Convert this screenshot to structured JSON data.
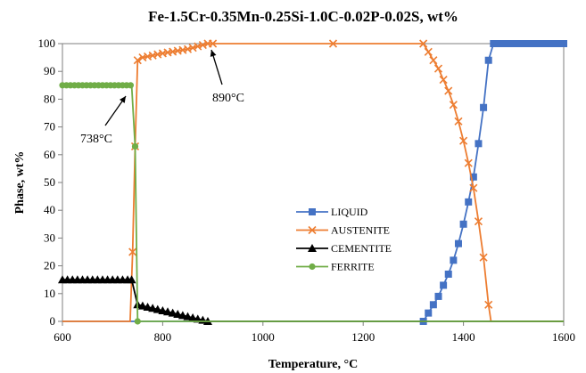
{
  "chart_data": {
    "type": "line",
    "title": "Fe-1.5Cr-0.35Mn-0.25Si-1.0C-0.02P-0.02S, wt%",
    "xlabel": "Temperature, °C",
    "ylabel": "Phase, wt%",
    "xlim": [
      600,
      1600
    ],
    "ylim": [
      0,
      100
    ],
    "xticks": [
      600,
      800,
      1000,
      1200,
      1400,
      1600
    ],
    "yticks": [
      0,
      10,
      20,
      30,
      40,
      50,
      60,
      70,
      80,
      90,
      100
    ],
    "grid": false,
    "legend_position": "center-right",
    "series": [
      {
        "name": "LIQUID",
        "color": "#4472C4",
        "marker": "square",
        "points": [
          [
            600,
            0
          ],
          [
            1320,
            0
          ],
          [
            1330,
            3
          ],
          [
            1340,
            6
          ],
          [
            1350,
            9
          ],
          [
            1360,
            13
          ],
          [
            1370,
            17
          ],
          [
            1380,
            22
          ],
          [
            1390,
            28
          ],
          [
            1400,
            35
          ],
          [
            1410,
            43
          ],
          [
            1420,
            52
          ],
          [
            1430,
            64
          ],
          [
            1440,
            77
          ],
          [
            1450,
            94
          ],
          [
            1460,
            100
          ],
          [
            1600,
            100
          ]
        ],
        "marker_x": [
          1320,
          1330,
          1340,
          1350,
          1360,
          1370,
          1380,
          1390,
          1400,
          1410,
          1420,
          1430,
          1440,
          1450,
          1460,
          1470,
          1480,
          1490,
          1500,
          1510,
          1520,
          1530,
          1540,
          1550,
          1560,
          1570,
          1580,
          1590,
          1600
        ]
      },
      {
        "name": "AUSTENITE",
        "color": "#ED7D31",
        "marker": "x",
        "points": [
          [
            600,
            0
          ],
          [
            735,
            0
          ],
          [
            740,
            25
          ],
          [
            745,
            63
          ],
          [
            750,
            94
          ],
          [
            760,
            95
          ],
          [
            800,
            96.5
          ],
          [
            850,
            98
          ],
          [
            890,
            100
          ],
          [
            1320,
            100
          ],
          [
            1330,
            97
          ],
          [
            1340,
            94
          ],
          [
            1350,
            91
          ],
          [
            1360,
            87
          ],
          [
            1370,
            83
          ],
          [
            1380,
            78
          ],
          [
            1390,
            72
          ],
          [
            1400,
            65
          ],
          [
            1410,
            57
          ],
          [
            1420,
            48
          ],
          [
            1430,
            36
          ],
          [
            1440,
            23
          ],
          [
            1450,
            6
          ],
          [
            1455,
            0
          ],
          [
            1600,
            0
          ]
        ],
        "marker_x": [
          740,
          745,
          750,
          760,
          770,
          780,
          790,
          800,
          810,
          820,
          830,
          840,
          850,
          860,
          870,
          880,
          890,
          900,
          1140,
          1320,
          1330,
          1340,
          1350,
          1360,
          1370,
          1380,
          1390,
          1400,
          1410,
          1420,
          1430,
          1440,
          1450
        ]
      },
      {
        "name": "CEMENTITE",
        "color": "#000000",
        "marker": "triangle",
        "points": [
          [
            600,
            15
          ],
          [
            738,
            15
          ],
          [
            750,
            6
          ],
          [
            890,
            0
          ],
          [
            1600,
            0
          ]
        ],
        "marker_x": [
          600,
          610,
          620,
          630,
          640,
          650,
          660,
          670,
          680,
          690,
          700,
          710,
          720,
          730,
          738,
          750,
          760,
          770,
          780,
          790,
          800,
          810,
          820,
          830,
          840,
          850,
          860,
          870,
          880,
          890
        ]
      },
      {
        "name": "FERRITE",
        "color": "#70AD47",
        "marker": "circle",
        "points": [
          [
            600,
            85
          ],
          [
            738,
            85
          ],
          [
            745,
            63
          ],
          [
            750,
            0
          ],
          [
            1600,
            0
          ]
        ],
        "marker_x": [
          600,
          608,
          616,
          624,
          632,
          640,
          648,
          656,
          664,
          672,
          680,
          688,
          696,
          704,
          712,
          720,
          728,
          736,
          745,
          750
        ]
      }
    ],
    "annotations": [
      {
        "text": "738°C",
        "x": 738,
        "y": 85
      },
      {
        "text": "890°C",
        "x": 890,
        "y": 100
      }
    ]
  }
}
